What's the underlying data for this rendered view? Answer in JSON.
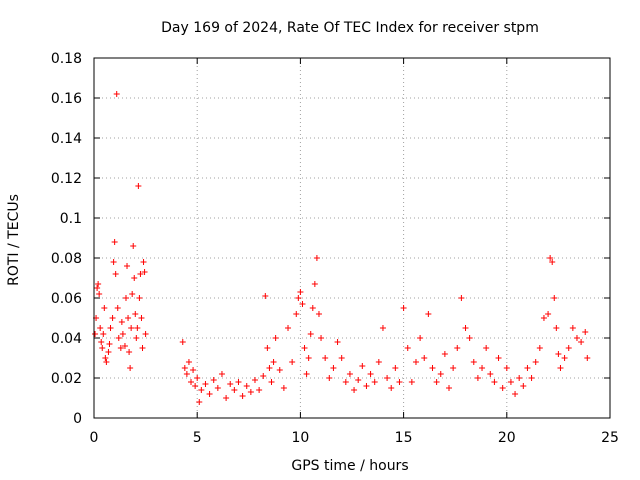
{
  "chart_data": {
    "type": "scatter",
    "title": "Day 169 of 2024, Rate Of TEC Index for receiver stpm",
    "xlabel": "GPS time / hours",
    "ylabel": "ROTI / TECUs",
    "xlim": [
      0,
      25
    ],
    "ylim": [
      0,
      0.18
    ],
    "xticks": [
      0,
      5,
      10,
      15,
      20,
      25
    ],
    "yticks": [
      0,
      0.02,
      0.04,
      0.06,
      0.08,
      0.1,
      0.12,
      0.14,
      0.16,
      0.18
    ],
    "xtick_labels": [
      "0",
      "5",
      "10",
      "15",
      "20",
      "25"
    ],
    "ytick_labels": [
      "0",
      "0.02",
      "0.04",
      "0.06",
      "0.08",
      "0.1",
      "0.12",
      "0.14",
      "0.16",
      "0.18"
    ],
    "grid": true,
    "marker": "+",
    "color": "#ff0000",
    "series": [
      {
        "name": "ROTI",
        "points": [
          [
            0.05,
            0.042
          ],
          [
            0.1,
            0.05
          ],
          [
            0.15,
            0.065
          ],
          [
            0.2,
            0.067
          ],
          [
            0.25,
            0.062
          ],
          [
            0.3,
            0.045
          ],
          [
            0.35,
            0.038
          ],
          [
            0.4,
            0.035
          ],
          [
            0.45,
            0.042
          ],
          [
            0.5,
            0.055
          ],
          [
            0.55,
            0.03
          ],
          [
            0.6,
            0.028
          ],
          [
            0.7,
            0.033
          ],
          [
            0.75,
            0.037
          ],
          [
            0.8,
            0.045
          ],
          [
            0.9,
            0.05
          ],
          [
            0.95,
            0.078
          ],
          [
            1.0,
            0.088
          ],
          [
            1.05,
            0.072
          ],
          [
            1.1,
            0.162
          ],
          [
            1.15,
            0.055
          ],
          [
            1.2,
            0.04
          ],
          [
            1.3,
            0.035
          ],
          [
            1.35,
            0.048
          ],
          [
            1.4,
            0.042
          ],
          [
            1.5,
            0.036
          ],
          [
            1.55,
            0.06
          ],
          [
            1.6,
            0.076
          ],
          [
            1.65,
            0.05
          ],
          [
            1.7,
            0.033
          ],
          [
            1.75,
            0.025
          ],
          [
            1.8,
            0.045
          ],
          [
            1.85,
            0.062
          ],
          [
            1.9,
            0.086
          ],
          [
            1.95,
            0.07
          ],
          [
            2.0,
            0.052
          ],
          [
            2.05,
            0.04
          ],
          [
            2.1,
            0.045
          ],
          [
            2.15,
            0.116
          ],
          [
            2.2,
            0.06
          ],
          [
            2.25,
            0.072
          ],
          [
            2.3,
            0.05
          ],
          [
            2.35,
            0.035
          ],
          [
            2.4,
            0.078
          ],
          [
            2.45,
            0.073
          ],
          [
            2.5,
            0.042
          ],
          [
            4.3,
            0.038
          ],
          [
            4.4,
            0.025
          ],
          [
            4.5,
            0.022
          ],
          [
            4.6,
            0.028
          ],
          [
            4.7,
            0.018
          ],
          [
            4.8,
            0.024
          ],
          [
            4.9,
            0.016
          ],
          [
            5.0,
            0.02
          ],
          [
            5.1,
            0.008
          ],
          [
            5.2,
            0.014
          ],
          [
            5.4,
            0.017
          ],
          [
            5.6,
            0.012
          ],
          [
            5.8,
            0.019
          ],
          [
            6.0,
            0.015
          ],
          [
            6.2,
            0.022
          ],
          [
            6.4,
            0.01
          ],
          [
            6.6,
            0.017
          ],
          [
            6.8,
            0.014
          ],
          [
            7.0,
            0.018
          ],
          [
            7.2,
            0.011
          ],
          [
            7.4,
            0.016
          ],
          [
            7.6,
            0.013
          ],
          [
            7.8,
            0.019
          ],
          [
            8.0,
            0.014
          ],
          [
            8.2,
            0.021
          ],
          [
            8.3,
            0.061
          ],
          [
            8.4,
            0.035
          ],
          [
            8.5,
            0.025
          ],
          [
            8.6,
            0.018
          ],
          [
            8.7,
            0.028
          ],
          [
            8.8,
            0.04
          ],
          [
            9.0,
            0.024
          ],
          [
            9.2,
            0.015
          ],
          [
            9.4,
            0.045
          ],
          [
            9.6,
            0.028
          ],
          [
            9.8,
            0.052
          ],
          [
            9.9,
            0.06
          ],
          [
            10.0,
            0.063
          ],
          [
            10.1,
            0.057
          ],
          [
            10.2,
            0.035
          ],
          [
            10.3,
            0.022
          ],
          [
            10.4,
            0.03
          ],
          [
            10.5,
            0.042
          ],
          [
            10.6,
            0.055
          ],
          [
            10.7,
            0.067
          ],
          [
            10.8,
            0.08
          ],
          [
            10.9,
            0.052
          ],
          [
            11.0,
            0.04
          ],
          [
            11.2,
            0.03
          ],
          [
            11.4,
            0.02
          ],
          [
            11.6,
            0.025
          ],
          [
            11.8,
            0.038
          ],
          [
            12.0,
            0.03
          ],
          [
            12.2,
            0.018
          ],
          [
            12.4,
            0.022
          ],
          [
            12.6,
            0.014
          ],
          [
            12.8,
            0.019
          ],
          [
            13.0,
            0.026
          ],
          [
            13.2,
            0.016
          ],
          [
            13.4,
            0.022
          ],
          [
            13.6,
            0.018
          ],
          [
            13.8,
            0.028
          ],
          [
            14.0,
            0.045
          ],
          [
            14.2,
            0.02
          ],
          [
            14.4,
            0.015
          ],
          [
            14.6,
            0.025
          ],
          [
            14.8,
            0.018
          ],
          [
            15.0,
            0.055
          ],
          [
            15.2,
            0.035
          ],
          [
            15.4,
            0.018
          ],
          [
            15.6,
            0.028
          ],
          [
            15.8,
            0.04
          ],
          [
            16.0,
            0.03
          ],
          [
            16.2,
            0.052
          ],
          [
            16.4,
            0.025
          ],
          [
            16.6,
            0.018
          ],
          [
            16.8,
            0.022
          ],
          [
            17.0,
            0.032
          ],
          [
            17.2,
            0.015
          ],
          [
            17.4,
            0.025
          ],
          [
            17.6,
            0.035
          ],
          [
            17.8,
            0.06
          ],
          [
            18.0,
            0.045
          ],
          [
            18.2,
            0.04
          ],
          [
            18.4,
            0.028
          ],
          [
            18.6,
            0.02
          ],
          [
            18.8,
            0.025
          ],
          [
            19.0,
            0.035
          ],
          [
            19.2,
            0.022
          ],
          [
            19.4,
            0.018
          ],
          [
            19.6,
            0.03
          ],
          [
            19.8,
            0.015
          ],
          [
            20.0,
            0.025
          ],
          [
            20.2,
            0.018
          ],
          [
            20.4,
            0.012
          ],
          [
            20.6,
            0.02
          ],
          [
            20.8,
            0.016
          ],
          [
            21.0,
            0.025
          ],
          [
            21.2,
            0.02
          ],
          [
            21.4,
            0.028
          ],
          [
            21.6,
            0.035
          ],
          [
            21.8,
            0.05
          ],
          [
            22.0,
            0.052
          ],
          [
            22.1,
            0.08
          ],
          [
            22.2,
            0.078
          ],
          [
            22.3,
            0.06
          ],
          [
            22.4,
            0.045
          ],
          [
            22.5,
            0.032
          ],
          [
            22.6,
            0.025
          ],
          [
            22.8,
            0.03
          ],
          [
            23.0,
            0.035
          ],
          [
            23.2,
            0.045
          ],
          [
            23.4,
            0.04
          ],
          [
            23.6,
            0.038
          ],
          [
            23.8,
            0.043
          ],
          [
            23.9,
            0.03
          ]
        ]
      }
    ]
  }
}
